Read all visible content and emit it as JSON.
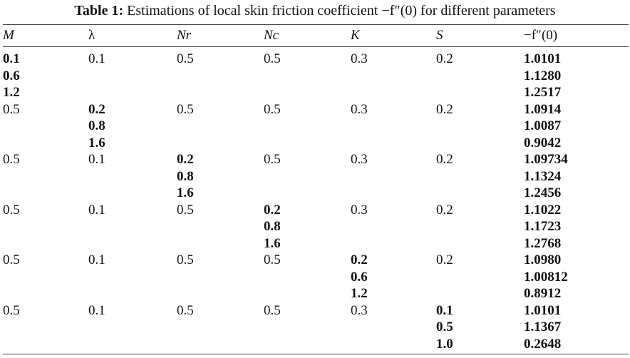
{
  "caption": {
    "label": "Table 1:",
    "text": "Estimations of local skin friction coefficient −f″(0) for different parameters"
  },
  "table": {
    "headers": [
      "M",
      "λ",
      "Nr",
      "Nc",
      "K",
      "S",
      "−f″(0)"
    ],
    "rows": [
      [
        "0.1",
        "0.1",
        "0.5",
        "0.5",
        "0.3",
        "0.2",
        "1.0101"
      ],
      [
        "0.6",
        "",
        "",
        "",
        "",
        "",
        "1.1280"
      ],
      [
        "1.2",
        "",
        "",
        "",
        "",
        "",
        "1.2517"
      ],
      [
        "0.5",
        "0.2",
        "0.5",
        "0.5",
        "0.3",
        "0.2",
        "1.0914"
      ],
      [
        "",
        "0.8",
        "",
        "",
        "",
        "",
        "1.0087"
      ],
      [
        "",
        "1.6",
        "",
        "",
        "",
        "",
        "0.9042"
      ],
      [
        "0.5",
        "0.1",
        "0.2",
        "0.5",
        "0.3",
        "0.2",
        "1.09734"
      ],
      [
        "",
        "",
        "0.8",
        "",
        "",
        "",
        "1.1324"
      ],
      [
        "",
        "",
        "1.6",
        "",
        "",
        "",
        "1.2456"
      ],
      [
        "0.5",
        "0.1",
        "0.5",
        "0.2",
        "0.3",
        "0.2",
        "1.1022"
      ],
      [
        "",
        "",
        "",
        "0.8",
        "",
        "",
        "1.1723"
      ],
      [
        "",
        "",
        "",
        "1.6",
        "",
        "",
        "1.2768"
      ],
      [
        "0.5",
        "0.1",
        "0.5",
        "0.5",
        "0.2",
        "0.2",
        "1.0980"
      ],
      [
        "",
        "",
        "",
        "",
        "0.6",
        "",
        "1.00812"
      ],
      [
        "",
        "",
        "",
        "",
        "1.2",
        "",
        "0.8912"
      ],
      [
        "0.5",
        "0.1",
        "0.5",
        "0.5",
        "0.3",
        "0.1",
        "1.0101"
      ],
      [
        "",
        "",
        "",
        "",
        "",
        "0.5",
        "1.1367"
      ],
      [
        "",
        "",
        "",
        "",
        "",
        "1.0",
        "0.2648"
      ]
    ]
  }
}
